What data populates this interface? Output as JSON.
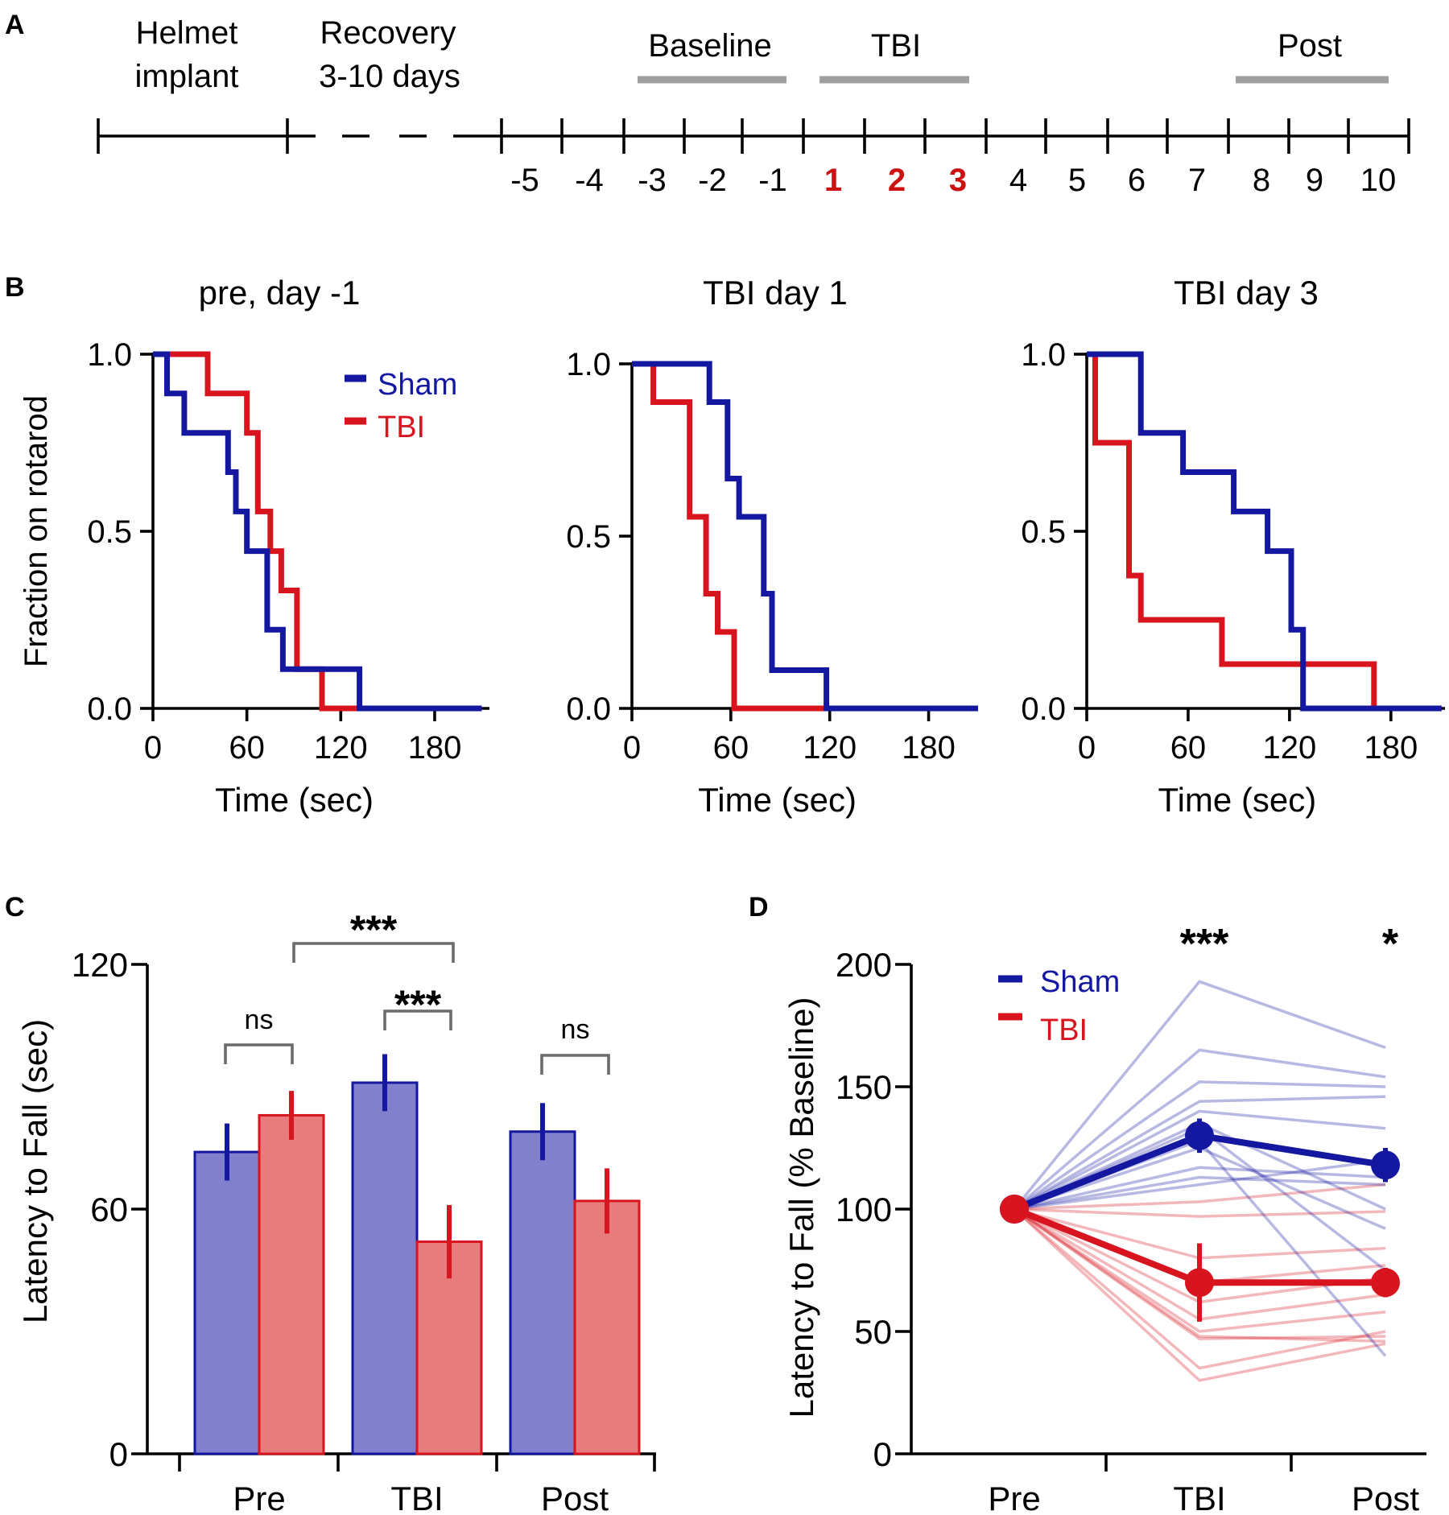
{
  "panels": {
    "A": {
      "letter": "A",
      "labels": {
        "helmet_l1": "Helmet",
        "helmet_l2": "implant",
        "recovery_l1": "Recovery",
        "recovery_l2": "3-10 days",
        "baseline": "Baseline",
        "tbi": "TBI",
        "post": "Post"
      },
      "days": [
        "-5",
        "-4",
        "-3",
        "-2",
        "-1",
        "1",
        "2",
        "3",
        "4",
        "5",
        "6",
        "7",
        "8",
        "9",
        "10"
      ],
      "highlight_days": [
        "1",
        "2",
        "3"
      ]
    },
    "B": {
      "letter": "B",
      "legend": [
        "Sham",
        "TBI"
      ],
      "ylabel": "Fraction on rotarod",
      "xlabel": "Time (sec)"
    },
    "C": {
      "letter": "C"
    },
    "D": {
      "letter": "D"
    }
  },
  "colors": {
    "sham": "#1418a0",
    "tbi": "#d8141e",
    "sham_fill": "#8080cc",
    "tbi_fill": "#e87c7c",
    "highlight_day": "#cc1111",
    "bar_grey": "#a0a0a0"
  },
  "chart_data": [
    {
      "id": "B1",
      "type": "line",
      "step": true,
      "title": "pre, day -1",
      "xlabel": "Time (sec)",
      "ylabel": "Fraction on rotarod",
      "xlim": [
        0,
        215
      ],
      "ylim": [
        0,
        1
      ],
      "xticks": [
        0,
        60,
        120,
        180
      ],
      "yticks": [
        0,
        0.5,
        1.0
      ],
      "ytick_labels": [
        "0.0",
        "0.5",
        "1.0"
      ],
      "series": [
        {
          "name": "Sham",
          "x": [
            0,
            9,
            9,
            20,
            20,
            48,
            48,
            53,
            53,
            60,
            60,
            73,
            73,
            83,
            83,
            132,
            132,
            152,
            152,
            210
          ],
          "y": [
            1.0,
            1.0,
            0.889,
            0.889,
            0.778,
            0.778,
            0.667,
            0.667,
            0.556,
            0.556,
            0.444,
            0.444,
            0.222,
            0.222,
            0.111,
            0.111,
            0.0,
            0.0,
            0.0,
            0.0
          ]
        },
        {
          "name": "TBI",
          "x": [
            0,
            35,
            35,
            60,
            60,
            67,
            67,
            75,
            75,
            82,
            82,
            92,
            92,
            108,
            108,
            155,
            155,
            210
          ],
          "y": [
            1.0,
            1.0,
            0.889,
            0.889,
            0.778,
            0.778,
            0.556,
            0.556,
            0.444,
            0.444,
            0.333,
            0.333,
            0.111,
            0.111,
            0.0,
            0.0,
            0.0,
            0.0
          ]
        }
      ]
    },
    {
      "id": "B2",
      "type": "line",
      "step": true,
      "title": "TBI day 1",
      "xlabel": "Time (sec)",
      "xlim": [
        0,
        210
      ],
      "ylim": [
        0,
        1
      ],
      "xticks": [
        0,
        60,
        120,
        180
      ],
      "yticks": [
        0,
        0.5,
        1.0
      ],
      "ytick_labels": [
        "0.0",
        "0.5",
        "1.0"
      ],
      "series": [
        {
          "name": "Sham",
          "x": [
            0,
            47,
            47,
            58,
            58,
            65,
            65,
            80,
            80,
            85,
            85,
            118,
            118,
            145,
            145,
            210
          ],
          "y": [
            1.0,
            1.0,
            0.889,
            0.889,
            0.667,
            0.667,
            0.556,
            0.556,
            0.333,
            0.333,
            0.111,
            0.111,
            0.0,
            0.0,
            0.0,
            0.0
          ]
        },
        {
          "name": "TBI",
          "x": [
            0,
            13,
            13,
            35,
            35,
            45,
            45,
            52,
            52,
            62,
            62,
            73,
            73,
            210
          ],
          "y": [
            1.0,
            1.0,
            0.889,
            0.889,
            0.556,
            0.556,
            0.333,
            0.333,
            0.222,
            0.222,
            0.0,
            0.0,
            0.0,
            0.0
          ]
        }
      ]
    },
    {
      "id": "B3",
      "type": "line",
      "step": true,
      "title": "TBI day 3",
      "xlabel": "Time (sec)",
      "xlim": [
        0,
        212
      ],
      "ylim": [
        0,
        1
      ],
      "xticks": [
        0,
        60,
        120,
        180
      ],
      "yticks": [
        0,
        0.5,
        1.0
      ],
      "ytick_labels": [
        "0.0",
        "0.5",
        "1.0"
      ],
      "series": [
        {
          "name": "Sham",
          "x": [
            0,
            32,
            32,
            57,
            57,
            87,
            87,
            107,
            107,
            121,
            121,
            128,
            128,
            145,
            145,
            210
          ],
          "y": [
            1.0,
            1.0,
            0.778,
            0.778,
            0.667,
            0.667,
            0.556,
            0.556,
            0.444,
            0.444,
            0.222,
            0.222,
            0.0,
            0.0,
            0.0,
            0.0
          ]
        },
        {
          "name": "TBI",
          "x": [
            0,
            5,
            5,
            25,
            25,
            32,
            32,
            80,
            80,
            170,
            170,
            210
          ],
          "y": [
            1.0,
            1.0,
            0.75,
            0.75,
            0.375,
            0.375,
            0.25,
            0.25,
            0.125,
            0.125,
            0.0,
            0.0
          ]
        }
      ]
    },
    {
      "id": "C",
      "type": "bar",
      "ylabel": "Latency to Fall (sec)",
      "ylim": [
        0,
        120
      ],
      "yticks": [
        0,
        60,
        120
      ],
      "categories": [
        "Pre",
        "TBI",
        "Post"
      ],
      "series": [
        {
          "name": "Sham",
          "values": [
            74,
            91,
            79
          ],
          "err": [
            7,
            7,
            7
          ]
        },
        {
          "name": "TBI",
          "values": [
            83,
            52,
            62
          ],
          "err": [
            6,
            9,
            8
          ]
        }
      ],
      "annotations": [
        {
          "label": "ns"
        },
        {
          "label": "***"
        },
        {
          "label": "***"
        },
        {
          "label": "ns"
        }
      ]
    },
    {
      "id": "D",
      "type": "line",
      "ylabel": "Latency to Fall (% Baseline)",
      "ylim": [
        0,
        200
      ],
      "yticks": [
        0,
        50,
        100,
        150,
        200
      ],
      "categories": [
        "Pre",
        "TBI",
        "Post"
      ],
      "legend": [
        "Sham",
        "TBI"
      ],
      "significance": [
        {
          "category": "TBI",
          "label": "***"
        },
        {
          "category": "Post",
          "label": "*"
        }
      ],
      "series": [
        {
          "name": "Sham",
          "values": [
            100,
            130,
            118
          ],
          "err": [
            0,
            7,
            7
          ]
        },
        {
          "name": "TBI",
          "values": [
            100,
            70,
            70
          ],
          "err": [
            0,
            16,
            6
          ]
        }
      ],
      "individual_sham": [
        [
          100,
          193,
          166
        ],
        [
          100,
          165,
          154
        ],
        [
          100,
          152,
          150
        ],
        [
          100,
          144,
          146
        ],
        [
          100,
          140,
          133
        ],
        [
          100,
          135,
          100
        ],
        [
          100,
          125,
          92
        ],
        [
          100,
          117,
          113
        ],
        [
          100,
          113,
          110
        ],
        [
          100,
          128,
          40
        ],
        [
          100,
          133,
          75
        ],
        [
          100,
          110,
          120
        ]
      ],
      "individual_tbi": [
        [
          100,
          103,
          110
        ],
        [
          100,
          97,
          99
        ],
        [
          100,
          80,
          84
        ],
        [
          100,
          70,
          77
        ],
        [
          100,
          62,
          72
        ],
        [
          100,
          55,
          65
        ],
        [
          100,
          50,
          58
        ],
        [
          100,
          48,
          46
        ],
        [
          100,
          47,
          48
        ],
        [
          100,
          35,
          50
        ],
        [
          100,
          30,
          45
        ]
      ]
    }
  ]
}
